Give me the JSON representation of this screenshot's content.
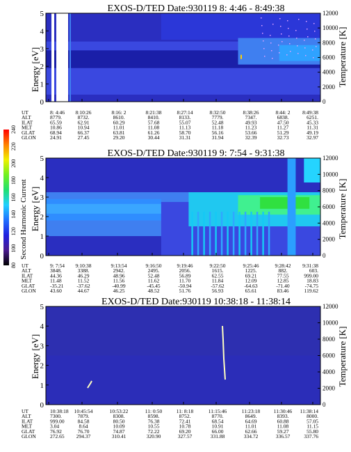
{
  "colors": {
    "background": "#2a2ec0",
    "band_dark": "#1a1fa8",
    "band_mid": "#3a48e0",
    "band_light": "#3f7ff0",
    "cyan": "#20c8f0",
    "green": "#30e040",
    "gap": "#ffffff"
  },
  "colorbar": {
    "label": "Second Harmonic Current",
    "ticks": [
      "80",
      "100",
      "120",
      "140",
      "160",
      "180",
      "200",
      "220",
      "240"
    ],
    "stops": [
      "#000000",
      "#4a1a90",
      "#2020e0",
      "#2070ff",
      "#20d0ff",
      "#20e070",
      "#70f020",
      "#f0f000",
      "#ff8000",
      "#ff0000"
    ]
  },
  "chart_data": [
    {
      "type": "heatmap",
      "title": "EXOS-D/TED Date:930119 8: 4:46 - 8:49:38",
      "ylabel": "Energy [eV]",
      "ylabel_right": "Temperature [K]",
      "ylim": [
        0,
        5
      ],
      "y_ticks": [
        "0",
        "1",
        "2",
        "3",
        "4",
        "5"
      ],
      "y2lim": [
        0,
        12000
      ],
      "y2_ticks": [
        "0",
        "2000",
        "4000",
        "6000",
        "8000",
        "10000",
        "12000"
      ],
      "rows": [
        {
          "label": "UT",
          "values": [
            "8: 4:46",
            "8:10:26",
            "8:16: 2",
            "8:21:38",
            "8:27:14",
            "8:32:50",
            "8:38:26",
            "8:44: 2",
            "8:49:38"
          ]
        },
        {
          "label": "ALT",
          "values": [
            "8779.",
            "8732.",
            "8610.",
            "8410.",
            "8133.",
            "7779.",
            "7347.",
            "6838.",
            "6251."
          ]
        },
        {
          "label": "ILAT",
          "values": [
            "65.59",
            "62.91",
            "60.29",
            "57.68",
            "55.07",
            "52.48",
            "49.93",
            "47.50",
            "45.33"
          ]
        },
        {
          "label": "MLT",
          "values": [
            "10.86",
            "10.94",
            "11.01",
            "11.08",
            "11.13",
            "11.18",
            "11.23",
            "11.27",
            "11.31"
          ]
        },
        {
          "label": "GLAT",
          "values": [
            "68.94",
            "66.37",
            "63.81",
            "61.26",
            "58.70",
            "56.16",
            "53.66",
            "51.29",
            "49.19"
          ]
        },
        {
          "label": "GLON",
          "values": [
            "24.91",
            "27.45",
            "29.20",
            "30.44",
            "31.31",
            "31.94",
            "32.39",
            "32.73",
            "32.97"
          ]
        }
      ]
    },
    {
      "type": "heatmap",
      "title": "EXOS-D/TED Date:930119 9: 7:54 - 9:31:38",
      "ylabel": "Energy [eV]",
      "ylabel_right": "Temperature [K]",
      "ylim": [
        0,
        5
      ],
      "y_ticks": [
        "0",
        "1",
        "2",
        "3",
        "4",
        "5"
      ],
      "y2lim": [
        0,
        12000
      ],
      "y2_ticks": [
        "0",
        "2000",
        "4000",
        "6000",
        "8000",
        "10000",
        "12000"
      ],
      "rows": [
        {
          "label": "UT",
          "values": [
            "9: 7:54",
            "9:10:38",
            "9:13:54",
            "9:16:50",
            "9:19:46",
            "9:22:50",
            "9:25:46",
            "9:28:42",
            "9:31:38"
          ]
        },
        {
          "label": "ALT",
          "values": [
            "3848.",
            "3388.",
            "2942.",
            "2495.",
            "2056.",
            "1615.",
            "1225.",
            "882.",
            "603."
          ]
        },
        {
          "label": "ILAT",
          "values": [
            "44.36",
            "46.29",
            "48.96",
            "52.48",
            "56.89",
            "62.55",
            "69.21",
            "77.55",
            "999.00"
          ]
        },
        {
          "label": "MLT",
          "values": [
            "11.48",
            "11.52",
            "11.56",
            "11.62",
            "11.70",
            "11.84",
            "12.09",
            "12.85",
            "18.83"
          ]
        },
        {
          "label": "GLAT",
          "values": [
            "-35.21",
            "-37.62",
            "-40.99",
            "-45.45",
            "-50.94",
            "-57.62",
            "-64.63",
            "-71.40",
            "-74.75"
          ]
        },
        {
          "label": "GLON",
          "values": [
            "43.60",
            "44.67",
            "46.25",
            "48.52",
            "51.76",
            "56.93",
            "65.61",
            "83.46",
            "119.62"
          ]
        }
      ]
    },
    {
      "type": "heatmap",
      "title": "EXOS-D/TED Date:930119 10:38:18 - 11:38:14",
      "ylabel": "Energy [eV]",
      "ylabel_right": "Temperature [K]",
      "ylim": [
        0,
        5
      ],
      "y_ticks": [
        "0",
        "1",
        "2",
        "3",
        "4",
        "5"
      ],
      "y2lim": [
        0,
        12000
      ],
      "y2_ticks": [
        "0",
        "2000",
        "4000",
        "6000",
        "8000",
        "10000",
        "12000"
      ],
      "rows": [
        {
          "label": "UT",
          "values": [
            "10:38:18",
            "10:45:54",
            "10:53:22",
            "11: 0:50",
            "11: 8:18",
            "11:15:46",
            "11:23:18",
            "11:30:46",
            "11:38:14"
          ]
        },
        {
          "label": "ALT",
          "values": [
            "7300.",
            "7879.",
            "8308.",
            "8598.",
            "8752.",
            "8770.",
            "8649.",
            "8393.",
            "8000."
          ]
        },
        {
          "label": "ILAT",
          "values": [
            "999.00",
            "84.58",
            "80.50",
            "76.38",
            "72.41",
            "68.54",
            "64.69",
            "60.88",
            "57.05"
          ]
        },
        {
          "label": "MLT",
          "values": [
            "3.04",
            "8.64",
            "10.09",
            "10.55",
            "10.78",
            "10.91",
            "11.01",
            "11.08",
            "11.15"
          ]
        },
        {
          "label": "GLAT",
          "values": [
            "76.92",
            "76.70",
            "74.87",
            "72.22",
            "69.20",
            "66.00",
            "62.66",
            "59.27",
            "55.80"
          ]
        },
        {
          "label": "GLON",
          "values": [
            "272.65",
            "294.37",
            "310.41",
            "320.90",
            "327.57",
            "331.88",
            "334.72",
            "336.57",
            "337.76"
          ]
        }
      ]
    }
  ]
}
